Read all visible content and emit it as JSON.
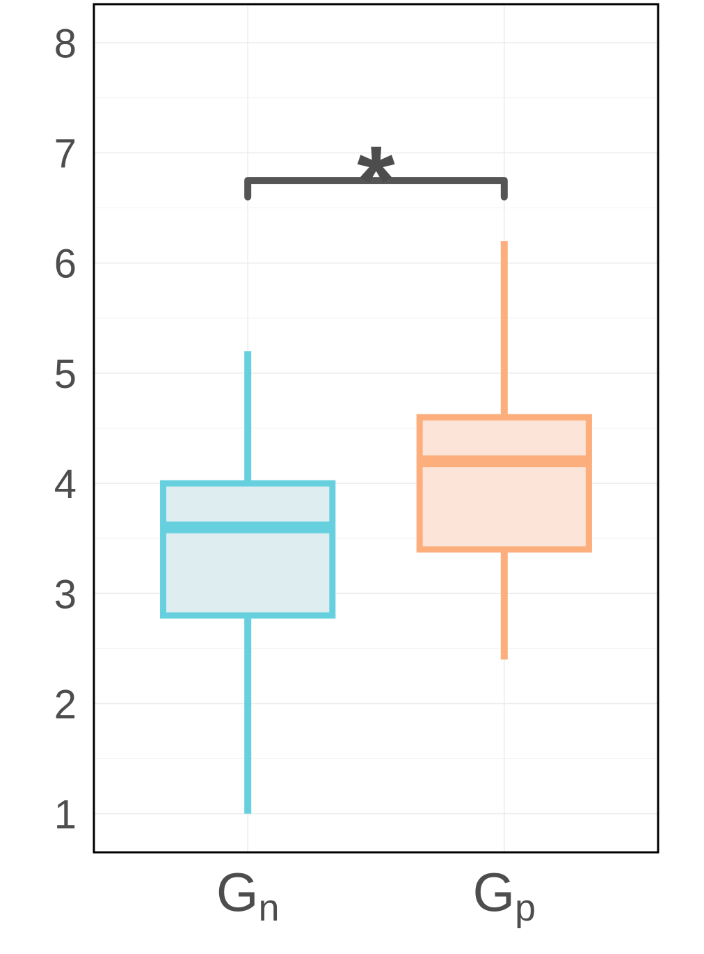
{
  "chart_data": {
    "type": "boxplot",
    "title": "",
    "xlabel": "",
    "ylabel": "",
    "ylim": [
      0.65,
      8.35
    ],
    "yticks": [
      1,
      2,
      3,
      4,
      5,
      6,
      7,
      8
    ],
    "ytick_labels": [
      "1",
      "2",
      "3",
      "4",
      "5",
      "6",
      "7",
      "8"
    ],
    "grid": true,
    "legend": "none",
    "categories": [
      {
        "main": "G",
        "sub": "n"
      },
      {
        "main": "G",
        "sub": "p"
      }
    ],
    "boxes": [
      {
        "category": "Gn",
        "min": 1.0,
        "q1": 2.8,
        "median": 3.6,
        "q3": 4.0,
        "max": 5.2,
        "color": "#66d0df",
        "fill": "#ddedf0"
      },
      {
        "category": "Gp",
        "min": 2.4,
        "q1": 3.4,
        "median": 4.2,
        "q3": 4.6,
        "max": 6.2,
        "color": "#fdae7d",
        "fill": "#fde4d8"
      }
    ],
    "significance": {
      "label": "*",
      "from": 0,
      "to": 1,
      "y": 6.75,
      "tip_y": 6.6,
      "color": "#555555"
    }
  }
}
